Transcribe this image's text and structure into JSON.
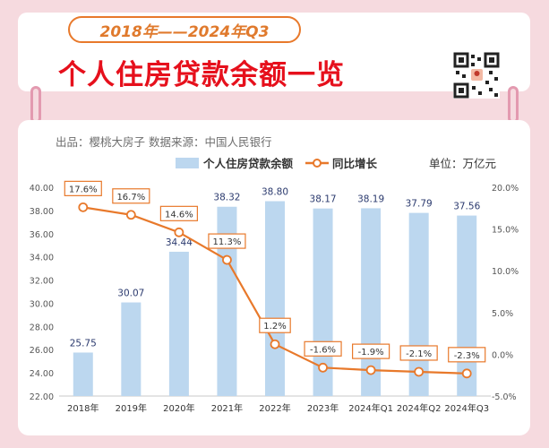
{
  "header": {
    "period": "2018年——2024年Q3",
    "title": "个人住房贷款余额一览"
  },
  "source_line": "出品：樱桃大房子  数据来源：中国人民银行",
  "legend": {
    "bar_label": "个人住房贷款余额",
    "line_label": "同比增长",
    "unit": "单位：万亿元"
  },
  "colors": {
    "bar": "#bcd7ef",
    "line": "#e8792b",
    "title_red": "#e6101c",
    "bar_label": "#2b3a6e",
    "background": "#f6dadf"
  },
  "chart_data": {
    "type": "bar",
    "categories": [
      "2018年",
      "2019年",
      "2020年",
      "2021年",
      "2022年",
      "2023年",
      "2024年Q1",
      "2024年Q2",
      "2024年Q3"
    ],
    "series": [
      {
        "name": "个人住房贷款余额",
        "type": "bar",
        "axis": "left",
        "values": [
          25.75,
          30.07,
          34.44,
          38.32,
          38.8,
          38.17,
          38.19,
          37.79,
          37.56
        ]
      },
      {
        "name": "同比增长",
        "type": "line",
        "axis": "right",
        "values": [
          17.6,
          16.7,
          14.6,
          11.3,
          1.2,
          -1.6,
          -1.9,
          -2.1,
          -2.3
        ]
      }
    ],
    "value_labels": [
      "25.75",
      "30.07",
      "34.44",
      "38.32",
      "38.80",
      "38.17",
      "38.19",
      "37.79",
      "37.56"
    ],
    "growth_labels": [
      "17.6%",
      "16.7%",
      "14.6%",
      "11.3%",
      "1.2%",
      "-1.6%",
      "-1.9%",
      "-2.1%",
      "-2.3%"
    ],
    "left_ticks": [
      "40.00",
      "38.00",
      "36.00",
      "34.00",
      "32.00",
      "30.00",
      "28.00",
      "26.00",
      "24.00",
      "22.00"
    ],
    "right_ticks": [
      "20.0%",
      "15.0%",
      "10.0%",
      "5.0%",
      "0.0%",
      "-5.0%"
    ],
    "left_axis_range": [
      22,
      40
    ],
    "right_axis_range": [
      -5,
      20
    ],
    "legend_position": "top",
    "grid": false
  }
}
